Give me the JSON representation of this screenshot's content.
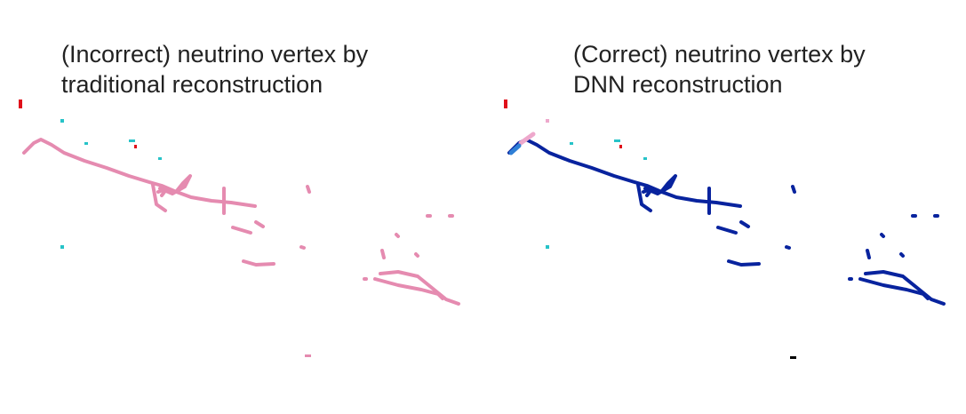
{
  "panels": [
    {
      "title": "(Incorrect) neutrino vertex by\ntraditional reconstruction"
    },
    {
      "title": "(Correct) neutrino vertex by\nDNN reconstruction"
    }
  ],
  "colors": {
    "left_track": "#e58bb0",
    "right_track": "#08239e",
    "cyan_hit": "#27c3c8",
    "red_hit": "#e0101a",
    "light_blue_hit": "#2f7fd6",
    "pink_hit": "#eea8cc",
    "black_hit": "#000000"
  }
}
